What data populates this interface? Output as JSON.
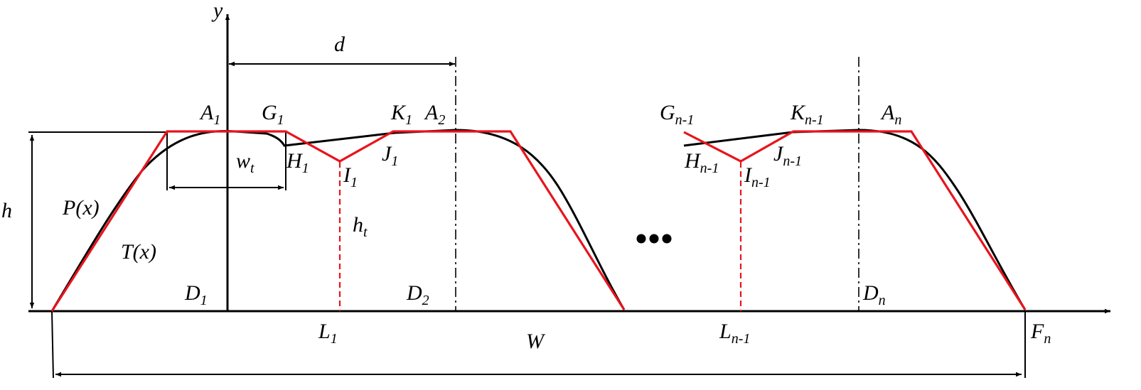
{
  "labels": {
    "y": "y",
    "d": "d",
    "h": "h",
    "P": "P(x)",
    "T": "T(x)",
    "wt": {
      "base": "w",
      "sub": "t"
    },
    "ht": {
      "base": "h",
      "sub": "t"
    },
    "W": "W",
    "A1": {
      "base": "A",
      "sub": "1"
    },
    "G1": {
      "base": "G",
      "sub": "1"
    },
    "K1": {
      "base": "K",
      "sub": "1"
    },
    "A2": {
      "base": "A",
      "sub": "2"
    },
    "H1": {
      "base": "H",
      "sub": "1"
    },
    "I1": {
      "base": "I",
      "sub": "1"
    },
    "J1": {
      "base": "J",
      "sub": "1"
    },
    "D1": {
      "base": "D",
      "sub": "1"
    },
    "D2": {
      "base": "D",
      "sub": "2"
    },
    "L1": {
      "base": "L",
      "sub": "1"
    },
    "Gn1": {
      "base": "G",
      "sub": "n-1"
    },
    "Kn1": {
      "base": "K",
      "sub": "n-1"
    },
    "An": {
      "base": "A",
      "sub": "n"
    },
    "Hn1": {
      "base": "H",
      "sub": "n-1"
    },
    "Jn1": {
      "base": "J",
      "sub": "n-1"
    },
    "In1": {
      "base": "I",
      "sub": "n-1"
    },
    "Dn": {
      "base": "D",
      "sub": "n"
    },
    "Ln1": {
      "base": "L",
      "sub": "n-1"
    },
    "Fn": {
      "base": "F",
      "sub": "n"
    }
  },
  "colors": {
    "profile": "#000000",
    "trapezoid": "#e8141c"
  }
}
